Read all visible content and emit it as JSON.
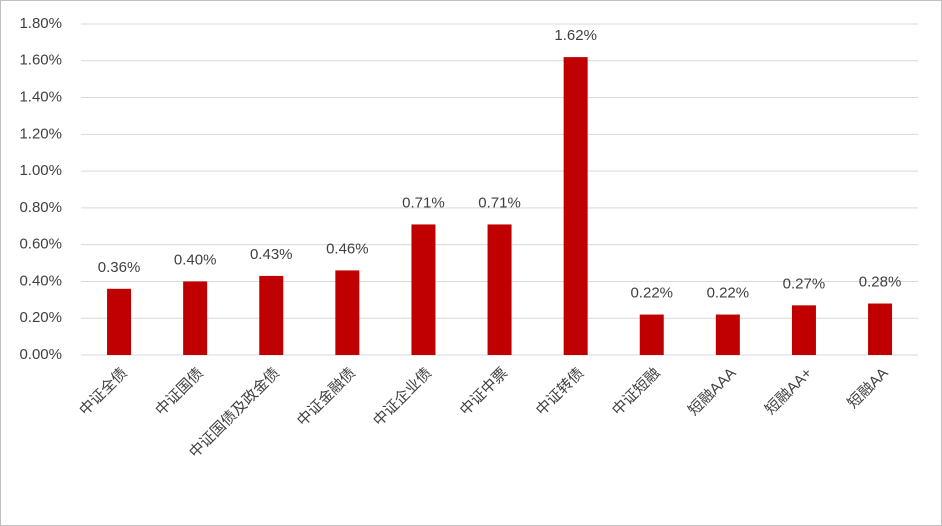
{
  "chart_data": {
    "type": "bar",
    "categories": [
      "中证全债",
      "中证国债",
      "中证国债及政金债",
      "中证金融债",
      "中证企业债",
      "中证中票",
      "中证转债",
      "中证短融",
      "短融AAA",
      "短融AA+",
      "短融AA"
    ],
    "values": [
      0.36,
      0.4,
      0.43,
      0.46,
      0.71,
      0.71,
      1.62,
      0.22,
      0.22,
      0.27,
      0.28
    ],
    "value_labels": [
      "0.36%",
      "0.40%",
      "0.43%",
      "0.46%",
      "0.71%",
      "0.71%",
      "1.62%",
      "0.22%",
      "0.22%",
      "0.27%",
      "0.28%"
    ],
    "color": "#c00000",
    "ylim": [
      0,
      1.8
    ],
    "yticks": [
      {
        "value": 0,
        "label": "0.00%"
      },
      {
        "value": 0.2,
        "label": "0.20%"
      },
      {
        "value": 0.4,
        "label": "0.40%"
      },
      {
        "value": 0.6,
        "label": "0.60%"
      },
      {
        "value": 0.8,
        "label": "0.80%"
      },
      {
        "value": 1.0,
        "label": "1.00%"
      },
      {
        "value": 1.2,
        "label": "1.20%"
      },
      {
        "value": 1.4,
        "label": "1.40%"
      },
      {
        "value": 1.6,
        "label": "1.60%"
      },
      {
        "value": 1.8,
        "label": "1.80%"
      }
    ],
    "grid": true
  }
}
